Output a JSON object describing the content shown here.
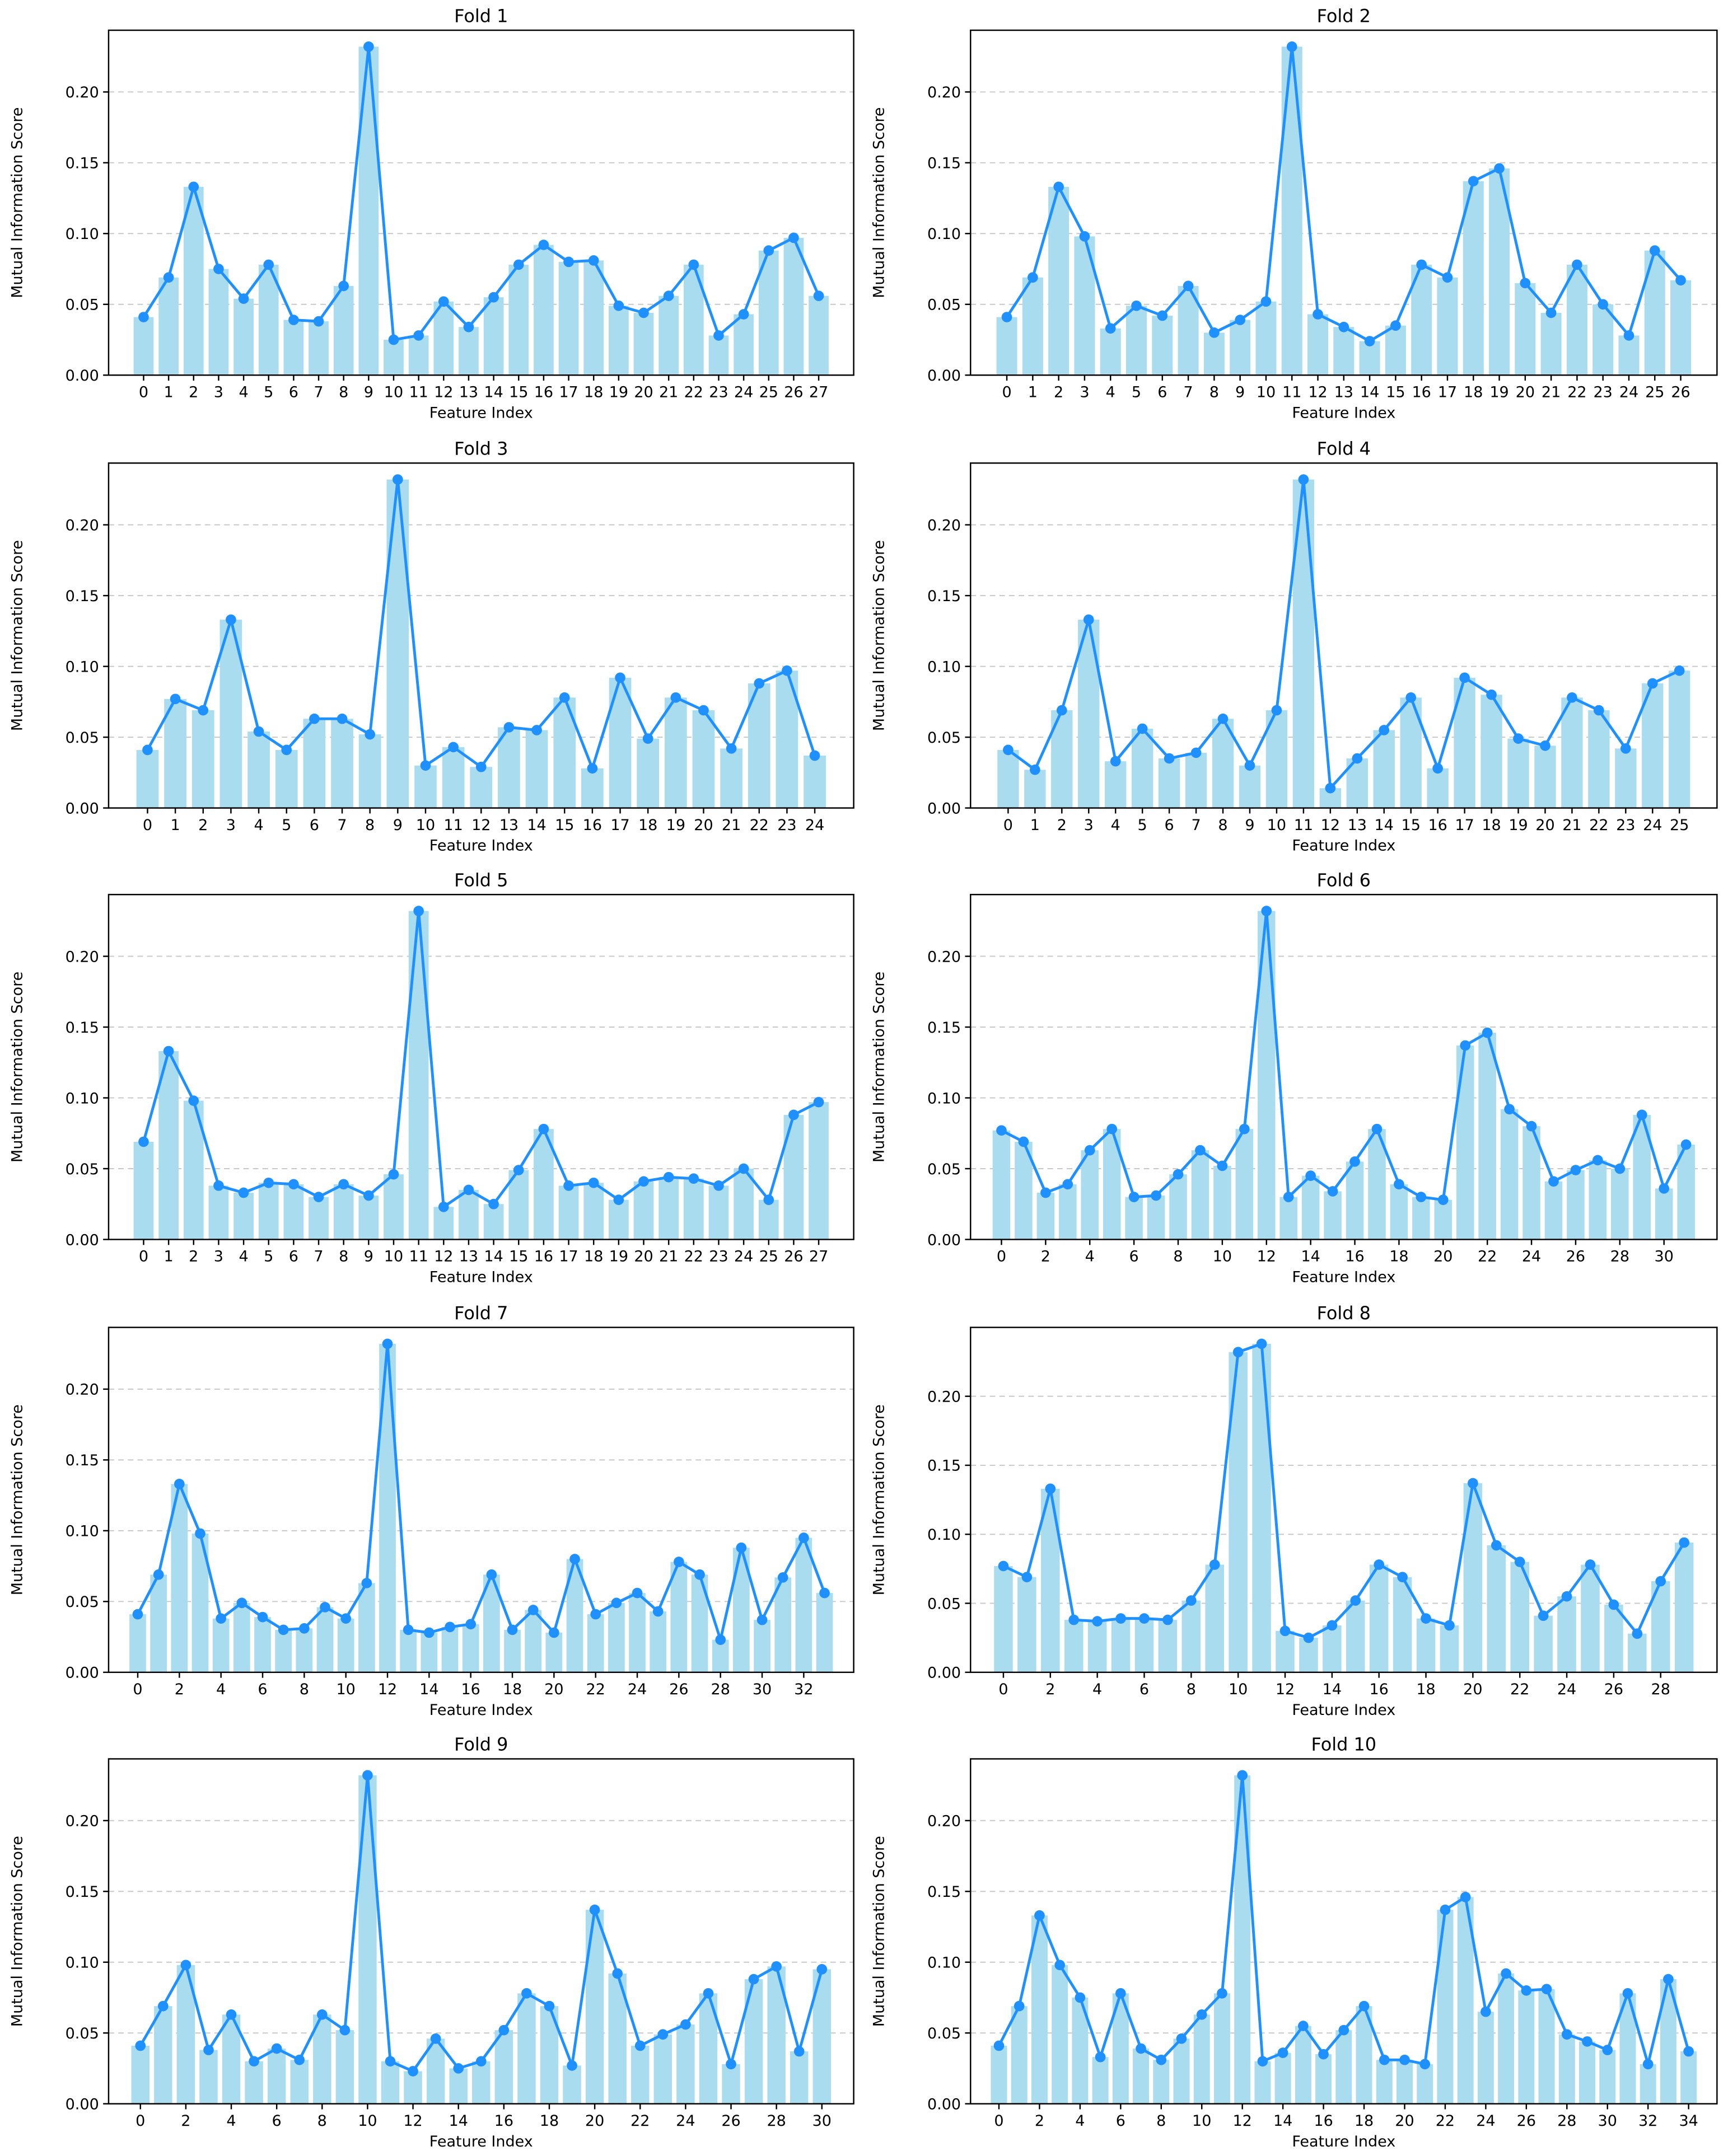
{
  "chart_data": [
    {
      "type": "bar",
      "title": "Fold 1",
      "xlabel": "Feature Index",
      "ylabel": "Mutual Information Score",
      "color": "#aadcf0",
      "line_color": "#1e90ff",
      "grid": true,
      "x": [
        0,
        1,
        2,
        3,
        4,
        5,
        6,
        7,
        8,
        9,
        10,
        11,
        12,
        13,
        14,
        15,
        16,
        17,
        18,
        19,
        20,
        21,
        22,
        23,
        24,
        25,
        26,
        27
      ],
      "values": [
        0.041,
        0.069,
        0.133,
        0.075,
        0.054,
        0.078,
        0.039,
        0.038,
        0.063,
        0.232,
        0.025,
        0.028,
        0.052,
        0.034,
        0.055,
        0.078,
        0.092,
        0.08,
        0.081,
        0.049,
        0.044,
        0.056,
        0.078,
        0.028,
        0.043,
        0.088,
        0.097,
        0.056
      ],
      "xlim": [
        -1.4,
        28.4
      ],
      "xticks": [
        0,
        1,
        2,
        3,
        4,
        5,
        6,
        7,
        8,
        9,
        10,
        11,
        12,
        13,
        14,
        15,
        16,
        17,
        18,
        19,
        20,
        21,
        22,
        23,
        24,
        25,
        26,
        27
      ],
      "ylim": [
        0,
        0.2436
      ],
      "yticks": [
        {
          "value": 0,
          "label": "0.00"
        },
        {
          "value": 0.05,
          "label": "0.05"
        },
        {
          "value": 0.1,
          "label": "0.10"
        },
        {
          "value": 0.15,
          "label": "0.15"
        },
        {
          "value": 0.2,
          "label": "0.20"
        }
      ]
    },
    {
      "type": "bar",
      "title": "Fold 2",
      "xlabel": "Feature Index",
      "ylabel": "Mutual Information Score",
      "color": "#aadcf0",
      "line_color": "#1e90ff",
      "grid": true,
      "x": [
        0,
        1,
        2,
        3,
        4,
        5,
        6,
        7,
        8,
        9,
        10,
        11,
        12,
        13,
        14,
        15,
        16,
        17,
        18,
        19,
        20,
        21,
        22,
        23,
        24,
        25,
        26
      ],
      "values": [
        0.041,
        0.069,
        0.133,
        0.098,
        0.033,
        0.049,
        0.042,
        0.063,
        0.03,
        0.039,
        0.052,
        0.232,
        0.043,
        0.034,
        0.024,
        0.035,
        0.078,
        0.069,
        0.137,
        0.146,
        0.065,
        0.044,
        0.078,
        0.05,
        0.028,
        0.088,
        0.067
      ],
      "xlim": [
        -1.4,
        27.4
      ],
      "xticks": [
        0,
        1,
        2,
        3,
        4,
        5,
        6,
        7,
        8,
        9,
        10,
        11,
        12,
        13,
        14,
        15,
        16,
        17,
        18,
        19,
        20,
        21,
        22,
        23,
        24,
        25,
        26
      ],
      "ylim": [
        0,
        0.2436
      ],
      "yticks": [
        {
          "value": 0,
          "label": "0.00"
        },
        {
          "value": 0.05,
          "label": "0.05"
        },
        {
          "value": 0.1,
          "label": "0.10"
        },
        {
          "value": 0.15,
          "label": "0.15"
        },
        {
          "value": 0.2,
          "label": "0.20"
        }
      ]
    },
    {
      "type": "bar",
      "title": "Fold 3",
      "xlabel": "Feature Index",
      "ylabel": "Mutual Information Score",
      "color": "#aadcf0",
      "line_color": "#1e90ff",
      "grid": true,
      "x": [
        0,
        1,
        2,
        3,
        4,
        5,
        6,
        7,
        8,
        9,
        10,
        11,
        12,
        13,
        14,
        15,
        16,
        17,
        18,
        19,
        20,
        21,
        22,
        23,
        24
      ],
      "values": [
        0.041,
        0.077,
        0.069,
        0.133,
        0.054,
        0.041,
        0.063,
        0.063,
        0.052,
        0.232,
        0.03,
        0.043,
        0.029,
        0.057,
        0.055,
        0.078,
        0.028,
        0.092,
        0.049,
        0.078,
        0.069,
        0.042,
        0.088,
        0.097,
        0.037
      ],
      "xlim": [
        -1.4,
        25.4
      ],
      "xticks": [
        0,
        1,
        2,
        3,
        4,
        5,
        6,
        7,
        8,
        9,
        10,
        11,
        12,
        13,
        14,
        15,
        16,
        17,
        18,
        19,
        20,
        21,
        22,
        23,
        24
      ],
      "ylim": [
        0,
        0.2436
      ],
      "yticks": [
        {
          "value": 0,
          "label": "0.00"
        },
        {
          "value": 0.05,
          "label": "0.05"
        },
        {
          "value": 0.1,
          "label": "0.10"
        },
        {
          "value": 0.15,
          "label": "0.15"
        },
        {
          "value": 0.2,
          "label": "0.20"
        }
      ]
    },
    {
      "type": "bar",
      "title": "Fold 4",
      "xlabel": "Feature Index",
      "ylabel": "Mutual Information Score",
      "color": "#aadcf0",
      "line_color": "#1e90ff",
      "grid": true,
      "x": [
        0,
        1,
        2,
        3,
        4,
        5,
        6,
        7,
        8,
        9,
        10,
        11,
        12,
        13,
        14,
        15,
        16,
        17,
        18,
        19,
        20,
        21,
        22,
        23,
        24,
        25
      ],
      "values": [
        0.041,
        0.027,
        0.069,
        0.133,
        0.033,
        0.056,
        0.035,
        0.039,
        0.063,
        0.03,
        0.069,
        0.232,
        0.014,
        0.035,
        0.055,
        0.078,
        0.028,
        0.092,
        0.08,
        0.049,
        0.044,
        0.078,
        0.069,
        0.042,
        0.088,
        0.097
      ],
      "xlim": [
        -1.4,
        26.4
      ],
      "xticks": [
        0,
        1,
        2,
        3,
        4,
        5,
        6,
        7,
        8,
        9,
        10,
        11,
        12,
        13,
        14,
        15,
        16,
        17,
        18,
        19,
        20,
        21,
        22,
        23,
        24,
        25
      ],
      "ylim": [
        0,
        0.2436
      ],
      "yticks": [
        {
          "value": 0,
          "label": "0.00"
        },
        {
          "value": 0.05,
          "label": "0.05"
        },
        {
          "value": 0.1,
          "label": "0.10"
        },
        {
          "value": 0.15,
          "label": "0.15"
        },
        {
          "value": 0.2,
          "label": "0.20"
        }
      ]
    },
    {
      "type": "bar",
      "title": "Fold 5",
      "xlabel": "Feature Index",
      "ylabel": "Mutual Information Score",
      "color": "#aadcf0",
      "line_color": "#1e90ff",
      "grid": true,
      "x": [
        0,
        1,
        2,
        3,
        4,
        5,
        6,
        7,
        8,
        9,
        10,
        11,
        12,
        13,
        14,
        15,
        16,
        17,
        18,
        19,
        20,
        21,
        22,
        23,
        24,
        25,
        26,
        27
      ],
      "values": [
        0.069,
        0.133,
        0.098,
        0.038,
        0.033,
        0.04,
        0.039,
        0.03,
        0.039,
        0.031,
        0.046,
        0.232,
        0.023,
        0.035,
        0.025,
        0.049,
        0.078,
        0.038,
        0.04,
        0.028,
        0.041,
        0.044,
        0.043,
        0.038,
        0.05,
        0.028,
        0.088,
        0.097
      ],
      "xlim": [
        -1.4,
        28.4
      ],
      "xticks": [
        0,
        1,
        2,
        3,
        4,
        5,
        6,
        7,
        8,
        9,
        10,
        11,
        12,
        13,
        14,
        15,
        16,
        17,
        18,
        19,
        20,
        21,
        22,
        23,
        24,
        25,
        26,
        27
      ],
      "ylim": [
        0,
        0.2436
      ],
      "yticks": [
        {
          "value": 0,
          "label": "0.00"
        },
        {
          "value": 0.05,
          "label": "0.05"
        },
        {
          "value": 0.1,
          "label": "0.10"
        },
        {
          "value": 0.15,
          "label": "0.15"
        },
        {
          "value": 0.2,
          "label": "0.20"
        }
      ]
    },
    {
      "type": "bar",
      "title": "Fold 6",
      "xlabel": "Feature Index",
      "ylabel": "Mutual Information Score",
      "color": "#aadcf0",
      "line_color": "#1e90ff",
      "grid": true,
      "x": [
        0,
        1,
        2,
        3,
        4,
        5,
        6,
        7,
        8,
        9,
        10,
        11,
        12,
        13,
        14,
        15,
        16,
        17,
        18,
        19,
        20,
        21,
        22,
        23,
        24,
        25,
        26,
        27,
        28,
        29,
        30,
        31
      ],
      "values": [
        0.077,
        0.069,
        0.033,
        0.039,
        0.063,
        0.078,
        0.03,
        0.031,
        0.046,
        0.063,
        0.052,
        0.078,
        0.232,
        0.03,
        0.045,
        0.034,
        0.055,
        0.078,
        0.039,
        0.03,
        0.028,
        0.137,
        0.146,
        0.092,
        0.08,
        0.041,
        0.049,
        0.056,
        0.05,
        0.088,
        0.036,
        0.067
      ],
      "xlim": [
        -1.4,
        32.4
      ],
      "xticks": [
        0,
        2,
        4,
        6,
        8,
        10,
        12,
        14,
        16,
        18,
        20,
        22,
        24,
        26,
        28,
        30
      ],
      "ylim": [
        0,
        0.2436
      ],
      "yticks": [
        {
          "value": 0,
          "label": "0.00"
        },
        {
          "value": 0.05,
          "label": "0.05"
        },
        {
          "value": 0.1,
          "label": "0.10"
        },
        {
          "value": 0.15,
          "label": "0.15"
        },
        {
          "value": 0.2,
          "label": "0.20"
        }
      ]
    },
    {
      "type": "bar",
      "title": "Fold 7",
      "xlabel": "Feature Index",
      "ylabel": "Mutual Information Score",
      "color": "#aadcf0",
      "line_color": "#1e90ff",
      "grid": true,
      "x": [
        0,
        1,
        2,
        3,
        4,
        5,
        6,
        7,
        8,
        9,
        10,
        11,
        12,
        13,
        14,
        15,
        16,
        17,
        18,
        19,
        20,
        21,
        22,
        23,
        24,
        25,
        26,
        27,
        28,
        29,
        30,
        31,
        32,
        33
      ],
      "values": [
        0.041,
        0.069,
        0.133,
        0.098,
        0.038,
        0.049,
        0.039,
        0.03,
        0.031,
        0.046,
        0.038,
        0.063,
        0.232,
        0.03,
        0.028,
        0.032,
        0.034,
        0.069,
        0.03,
        0.044,
        0.028,
        0.08,
        0.041,
        0.049,
        0.056,
        0.043,
        0.078,
        0.069,
        0.023,
        0.088,
        0.037,
        0.067,
        0.095,
        0.056
      ],
      "xlim": [
        -1.4,
        34.4
      ],
      "xticks": [
        0,
        2,
        4,
        6,
        8,
        10,
        12,
        14,
        16,
        18,
        20,
        22,
        24,
        26,
        28,
        30,
        32
      ],
      "ylim": [
        0,
        0.2436
      ],
      "yticks": [
        {
          "value": 0,
          "label": "0.00"
        },
        {
          "value": 0.05,
          "label": "0.05"
        },
        {
          "value": 0.1,
          "label": "0.10"
        },
        {
          "value": 0.15,
          "label": "0.15"
        },
        {
          "value": 0.2,
          "label": "0.20"
        }
      ]
    },
    {
      "type": "bar",
      "title": "Fold 8",
      "xlabel": "Feature Index",
      "ylabel": "Mutual Information Score",
      "color": "#aadcf0",
      "line_color": "#1e90ff",
      "grid": true,
      "x": [
        0,
        1,
        2,
        3,
        4,
        5,
        6,
        7,
        8,
        9,
        10,
        11,
        12,
        13,
        14,
        15,
        16,
        17,
        18,
        19,
        20,
        21,
        22,
        23,
        24,
        25,
        26,
        27,
        28,
        29
      ],
      "values": [
        0.077,
        0.069,
        0.133,
        0.038,
        0.037,
        0.039,
        0.039,
        0.038,
        0.052,
        0.078,
        0.232,
        0.238,
        0.03,
        0.025,
        0.034,
        0.052,
        0.078,
        0.069,
        0.039,
        0.034,
        0.137,
        0.092,
        0.08,
        0.041,
        0.055,
        0.078,
        0.049,
        0.028,
        0.066,
        0.094
      ],
      "xlim": [
        -1.4,
        30.4
      ],
      "xticks": [
        0,
        2,
        4,
        6,
        8,
        10,
        12,
        14,
        16,
        18,
        20,
        22,
        24,
        26,
        28
      ],
      "ylim": [
        0,
        0.2499
      ],
      "yticks": [
        {
          "value": 0,
          "label": "0.00"
        },
        {
          "value": 0.05,
          "label": "0.05"
        },
        {
          "value": 0.1,
          "label": "0.10"
        },
        {
          "value": 0.15,
          "label": "0.15"
        },
        {
          "value": 0.2,
          "label": "0.20"
        }
      ]
    },
    {
      "type": "bar",
      "title": "Fold 9",
      "xlabel": "Feature Index",
      "ylabel": "Mutual Information Score",
      "color": "#aadcf0",
      "line_color": "#1e90ff",
      "grid": true,
      "x": [
        0,
        1,
        2,
        3,
        4,
        5,
        6,
        7,
        8,
        9,
        10,
        11,
        12,
        13,
        14,
        15,
        16,
        17,
        18,
        19,
        20,
        21,
        22,
        23,
        24,
        25,
        26,
        27,
        28,
        29,
        30
      ],
      "values": [
        0.041,
        0.069,
        0.098,
        0.038,
        0.063,
        0.03,
        0.039,
        0.031,
        0.063,
        0.052,
        0.232,
        0.03,
        0.023,
        0.046,
        0.025,
        0.03,
        0.052,
        0.078,
        0.069,
        0.027,
        0.137,
        0.092,
        0.041,
        0.049,
        0.056,
        0.078,
        0.028,
        0.088,
        0.097,
        0.037,
        0.095
      ],
      "xlim": [
        -1.4,
        31.4
      ],
      "xticks": [
        0,
        2,
        4,
        6,
        8,
        10,
        12,
        14,
        16,
        18,
        20,
        22,
        24,
        26,
        28,
        30
      ],
      "ylim": [
        0,
        0.2436
      ],
      "yticks": [
        {
          "value": 0,
          "label": "0.00"
        },
        {
          "value": 0.05,
          "label": "0.05"
        },
        {
          "value": 0.1,
          "label": "0.10"
        },
        {
          "value": 0.15,
          "label": "0.15"
        },
        {
          "value": 0.2,
          "label": "0.20"
        }
      ]
    },
    {
      "type": "bar",
      "title": "Fold 10",
      "xlabel": "Feature Index",
      "ylabel": "Mutual Information Score",
      "color": "#aadcf0",
      "line_color": "#1e90ff",
      "grid": true,
      "x": [
        0,
        1,
        2,
        3,
        4,
        5,
        6,
        7,
        8,
        9,
        10,
        11,
        12,
        13,
        14,
        15,
        16,
        17,
        18,
        19,
        20,
        21,
        22,
        23,
        24,
        25,
        26,
        27,
        28,
        29,
        30,
        31,
        32,
        33,
        34
      ],
      "values": [
        0.041,
        0.069,
        0.133,
        0.098,
        0.075,
        0.033,
        0.078,
        0.039,
        0.031,
        0.046,
        0.063,
        0.078,
        0.232,
        0.03,
        0.036,
        0.055,
        0.035,
        0.052,
        0.069,
        0.031,
        0.031,
        0.028,
        0.137,
        0.146,
        0.065,
        0.092,
        0.08,
        0.081,
        0.049,
        0.044,
        0.038,
        0.078,
        0.028,
        0.088,
        0.037
      ],
      "xlim": [
        -1.4,
        35.4
      ],
      "xticks": [
        0,
        2,
        4,
        6,
        8,
        10,
        12,
        14,
        16,
        18,
        20,
        22,
        24,
        26,
        28,
        30,
        32,
        34
      ],
      "ylim": [
        0,
        0.2436
      ],
      "yticks": [
        {
          "value": 0,
          "label": "0.00"
        },
        {
          "value": 0.05,
          "label": "0.05"
        },
        {
          "value": 0.1,
          "label": "0.10"
        },
        {
          "value": 0.15,
          "label": "0.15"
        },
        {
          "value": 0.2,
          "label": "0.20"
        }
      ]
    }
  ]
}
